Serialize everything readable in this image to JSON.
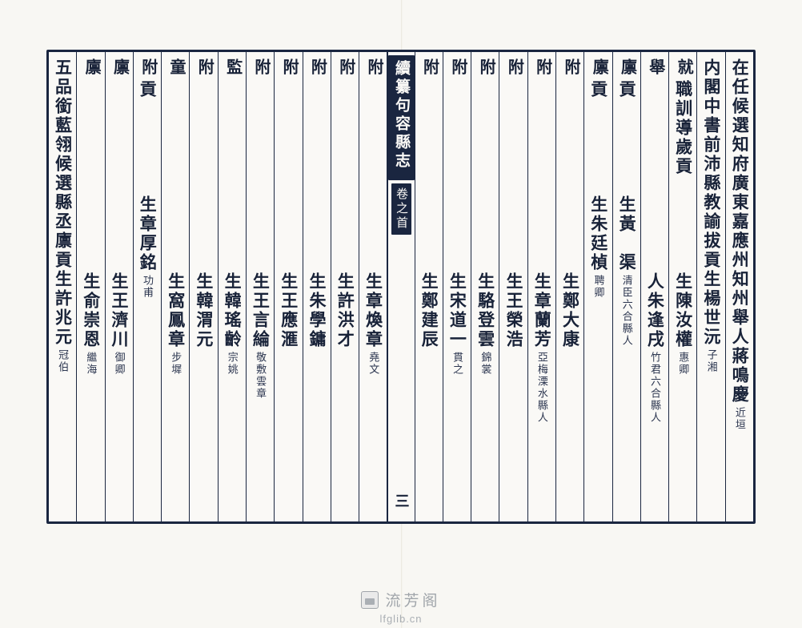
{
  "watermark": {
    "title": "流芳阁",
    "url": "lfglib.cn"
  },
  "spine": {
    "title": "續纂句容縣志",
    "section": "卷之首",
    "folio": "三"
  },
  "columns": [
    {
      "kind": "long",
      "text": "在任候選知府廣東嘉應州知州舉人蔣鳴慶",
      "note": "近垣"
    },
    {
      "kind": "long",
      "text": "内閣中書前沛縣教諭拔貢生楊世沅",
      "note": "子湘"
    },
    {
      "kind": "head-body",
      "head": "就",
      "prefix": "職訓導歲貢",
      "body": "生陳汝權",
      "note": "惠卿"
    },
    {
      "kind": "head-body",
      "head": "舉",
      "prefix": "",
      "body": "人朱逢戌",
      "note": "竹君六合縣人"
    },
    {
      "kind": "head-body",
      "head": "廪",
      "prefix": "貢",
      "body": "生黃　渠",
      "note": "清臣六合縣人"
    },
    {
      "kind": "head-body",
      "head": "廪",
      "prefix": "貢",
      "body": "生朱廷楨",
      "note": "聘卿"
    },
    {
      "kind": "head-body",
      "head": "附",
      "prefix": "",
      "body": "生鄭大康",
      "note": ""
    },
    {
      "kind": "head-body",
      "head": "附",
      "prefix": "",
      "body": "生章蘭芳",
      "note": "亞梅溧水縣人"
    },
    {
      "kind": "head-body",
      "head": "附",
      "prefix": "",
      "body": "生王榮浩",
      "note": ""
    },
    {
      "kind": "head-body",
      "head": "附",
      "prefix": "",
      "body": "生駱登雲",
      "note": "錦裳"
    },
    {
      "kind": "head-body",
      "head": "附",
      "prefix": "",
      "body": "生宋道一",
      "note": "貫之"
    },
    {
      "kind": "head-body",
      "head": "附",
      "prefix": "",
      "body": "生鄭建辰",
      "note": ""
    },
    {
      "kind": "spine"
    },
    {
      "kind": "head-body",
      "head": "附",
      "prefix": "",
      "body": "生章煥章",
      "note": "堯文"
    },
    {
      "kind": "head-body",
      "head": "附",
      "prefix": "",
      "body": "生許洪才",
      "note": ""
    },
    {
      "kind": "head-body",
      "head": "附",
      "prefix": "",
      "body": "生朱學鏞",
      "note": ""
    },
    {
      "kind": "head-body",
      "head": "附",
      "prefix": "",
      "body": "生王應滙",
      "note": ""
    },
    {
      "kind": "head-body",
      "head": "附",
      "prefix": "",
      "body": "生王言綸",
      "note": "敬敷雲章"
    },
    {
      "kind": "head-body",
      "head": "監",
      "prefix": "",
      "body": "生韓瑤齡",
      "note": "宗姚"
    },
    {
      "kind": "head-body",
      "head": "附",
      "prefix": "",
      "body": "生韓渭元",
      "note": ""
    },
    {
      "kind": "head-body",
      "head": "童",
      "prefix": "",
      "body": "生窩鳳章",
      "note": "步墀"
    },
    {
      "kind": "head-body",
      "head": "附",
      "prefix": "貢",
      "body": "生章厚銘",
      "note": "功甫"
    },
    {
      "kind": "head-body",
      "head": "廪",
      "prefix": "",
      "body": "生王濟川",
      "note": "御卿"
    },
    {
      "kind": "head-body",
      "head": "廪",
      "prefix": "",
      "body": "生俞崇恩",
      "note": "繼海"
    },
    {
      "kind": "long",
      "text": "五品銜藍翎候選縣丞廪貢生許兆元",
      "note": "冠伯"
    }
  ]
}
